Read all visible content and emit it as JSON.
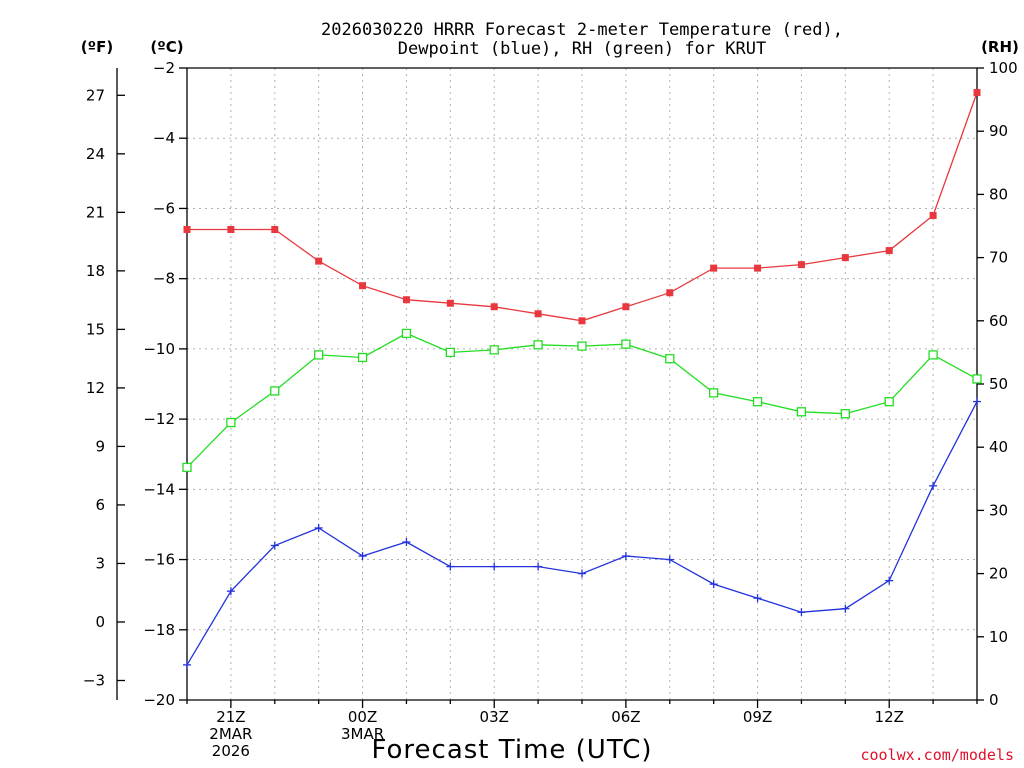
{
  "chart_data": {
    "type": "line",
    "title_lines": [
      "2026030220 HRRR Forecast 2-meter Temperature (red),",
      "Dewpoint (blue), RH (green) for KRUT"
    ],
    "units": {
      "left_f": "(ºF)",
      "left_c": "(ºC)",
      "right": "(RH)"
    },
    "xlabel": "Forecast Time (UTC)",
    "credit": "coolwx.com/models",
    "x_hours": [
      0,
      1,
      2,
      3,
      4,
      5,
      6,
      7,
      8,
      9,
      10,
      11,
      12,
      13,
      14,
      15,
      16,
      17,
      18
    ],
    "x_ticks": [
      {
        "hour": 1,
        "lines": [
          "21Z",
          "2MAR",
          "2026"
        ]
      },
      {
        "hour": 4,
        "lines": [
          "00Z",
          "3MAR"
        ]
      },
      {
        "hour": 7,
        "lines": [
          "03Z"
        ]
      },
      {
        "hour": 10,
        "lines": [
          "06Z"
        ]
      },
      {
        "hour": 13,
        "lines": [
          "09Z"
        ]
      },
      {
        "hour": 16,
        "lines": [
          "12Z"
        ]
      }
    ],
    "c_axis": {
      "range": [
        -20,
        -2
      ],
      "ticks": [
        -2,
        -4,
        -6,
        -8,
        -10,
        -12,
        -14,
        -16,
        -18,
        -20
      ]
    },
    "f_axis": {
      "ticks": [
        27,
        24,
        21,
        18,
        15,
        12,
        9,
        6,
        3,
        0,
        -3
      ]
    },
    "rh_axis": {
      "range": [
        0,
        100
      ],
      "ticks": [
        0,
        10,
        20,
        30,
        40,
        50,
        60,
        70,
        80,
        90,
        100
      ]
    },
    "series": [
      {
        "name": "2-meter Temperature",
        "color": "#e8383d",
        "marker": "filled-square",
        "axis": "c",
        "values": [
          -6.6,
          -6.6,
          -6.6,
          -7.5,
          -8.2,
          -8.6,
          -8.7,
          -8.8,
          -9.0,
          -9.2,
          -8.8,
          -8.4,
          -7.7,
          -7.7,
          -7.6,
          -7.4,
          -7.2,
          -6.2,
          -2.7
        ]
      },
      {
        "name": "Dewpoint",
        "color": "#2233dd",
        "marker": "plus",
        "axis": "c",
        "values": [
          -19.0,
          -16.9,
          -15.6,
          -15.1,
          -15.9,
          -15.5,
          -16.2,
          -16.2,
          -16.2,
          -16.4,
          -15.9,
          -16.0,
          -16.7,
          -17.1,
          -17.5,
          -17.4,
          -16.6,
          -13.9,
          -11.5
        ]
      },
      {
        "name": "Relative Humidity",
        "color": "#22dd22",
        "marker": "open-square",
        "axis": "rh",
        "values": [
          36.8,
          43.9,
          48.9,
          54.6,
          54.2,
          58.0,
          55.0,
          55.4,
          56.2,
          56.0,
          56.3,
          54.0,
          48.6,
          47.2,
          45.6,
          45.3,
          47.2,
          54.6,
          50.8
        ]
      }
    ]
  }
}
